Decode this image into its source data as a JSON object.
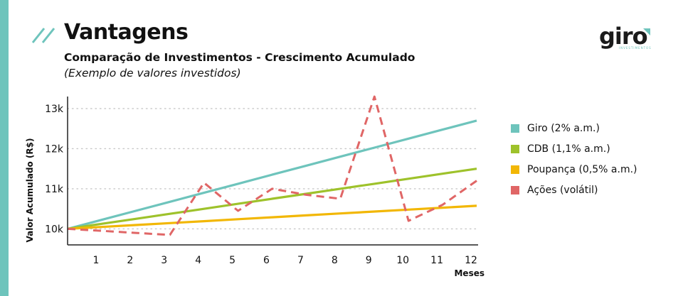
{
  "header": {
    "title": "Vantagens",
    "subtitle": "Comparação de Investimentos - Crescimento Acumulado",
    "note": "(Exemplo de valores investidos)"
  },
  "logo": {
    "text": "giro",
    "subtext": "INVESTIMENTOS"
  },
  "colors": {
    "accent": "#6ec4bc",
    "giro": "#6ec4bc",
    "cdb": "#9ec22b",
    "poupanca": "#f2b705",
    "acoes": "#e06666"
  },
  "chart_data": {
    "type": "line",
    "xlabel": "Meses",
    "ylabel": "Valor Acumulado (R$)",
    "x": [
      0,
      1,
      2,
      3,
      4,
      5,
      6,
      7,
      8,
      9,
      10,
      11,
      12
    ],
    "x_ticks": [
      1,
      2,
      3,
      4,
      5,
      6,
      7,
      8,
      9,
      10,
      11,
      12
    ],
    "xlim": [
      0,
      12
    ],
    "ylim": [
      9600,
      13300
    ],
    "y_ticks": [
      10000,
      11000,
      12000,
      13000
    ],
    "y_tick_labels": [
      "10k",
      "11k",
      "12k",
      "13k"
    ],
    "grid": "horizontal dotted",
    "legend_position": "right",
    "series": [
      {
        "name": "Giro (2% a.m.)",
        "style": "solid",
        "color": "#6ec4bc",
        "values": [
          10000,
          10225,
          10450,
          10675,
          10900,
          11125,
          11350,
          11575,
          11800,
          12025,
          12250,
          12475,
          12700
        ]
      },
      {
        "name": "CDB (1,1% a.m.)",
        "style": "solid",
        "color": "#9ec22b",
        "values": [
          10000,
          10125,
          10250,
          10375,
          10500,
          10625,
          10750,
          10875,
          11000,
          11125,
          11250,
          11375,
          11500
        ]
      },
      {
        "name": "Poupança (0,5% a.m.)",
        "style": "solid",
        "color": "#f2b705",
        "values": [
          10000,
          10048,
          10096,
          10144,
          10192,
          10240,
          10288,
          10336,
          10384,
          10432,
          10480,
          10528,
          10576
        ]
      },
      {
        "name": "Ações (volátil)",
        "style": "dashed",
        "color": "#e06666",
        "values": [
          10000,
          9950,
          9900,
          9850,
          11150,
          10450,
          11000,
          10850,
          10750,
          13300,
          10200,
          10600,
          11200
        ]
      }
    ]
  }
}
